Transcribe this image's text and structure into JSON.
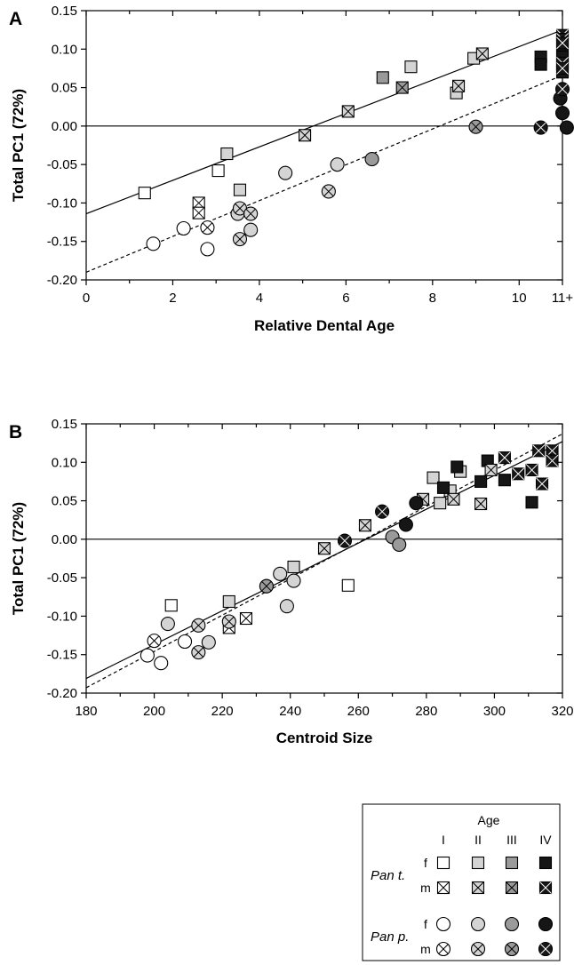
{
  "colors": {
    "I": "#ffffff",
    "II": "#d4d4d4",
    "III": "#9a9a9a",
    "IV": "#161616"
  },
  "chart_data": [
    {
      "type": "scatter",
      "panel": "A",
      "xlabel": "Relative Dental Age",
      "ylabel": "Total PC1 (72%)",
      "xlim": [
        0,
        11
      ],
      "ylim": [
        -0.2,
        0.15
      ],
      "xticks": [
        0,
        2,
        4,
        6,
        8,
        10,
        11
      ],
      "xtick_labels": [
        "0",
        "2",
        "4",
        "6",
        "8",
        "10",
        "11+"
      ],
      "yticks": [
        -0.2,
        -0.15,
        -0.1,
        -0.05,
        0.0,
        0.05,
        0.1,
        0.15
      ],
      "ytick_labels": [
        "-0.20",
        "-0.15",
        "-0.10",
        "-0.05",
        "0.00",
        "0.05",
        "0.10",
        "0.15"
      ],
      "reference_line_y": 0,
      "fit_lines": [
        {
          "style": "solid",
          "x": [
            0,
            11
          ],
          "y": [
            -0.114,
            0.125
          ]
        },
        {
          "style": "dashed",
          "x": [
            0,
            11
          ],
          "y": [
            -0.19,
            0.066
          ]
        }
      ],
      "series": [
        {
          "species": "Pan t.",
          "sex": "f",
          "age": "I",
          "points": [
            [
              1.35,
              -0.087
            ],
            [
              3.05,
              -0.058
            ]
          ]
        },
        {
          "species": "Pan t.",
          "sex": "f",
          "age": "II",
          "points": [
            [
              3.25,
              -0.036
            ],
            [
              3.55,
              -0.083
            ],
            [
              7.5,
              0.077
            ],
            [
              8.55,
              0.043
            ],
            [
              8.95,
              0.088
            ]
          ]
        },
        {
          "species": "Pan t.",
          "sex": "f",
          "age": "III",
          "points": [
            [
              6.85,
              0.063
            ]
          ]
        },
        {
          "species": "Pan t.",
          "sex": "f",
          "age": "IV",
          "points": [
            [
              10.5,
              0.09
            ],
            [
              10.5,
              0.08
            ],
            [
              11,
              0.1
            ],
            [
              11,
              0.09
            ],
            [
              11,
              0.07
            ],
            [
              11,
              0.08
            ]
          ]
        },
        {
          "species": "Pan t.",
          "sex": "m",
          "age": "I",
          "points": [
            [
              2.6,
              -0.1
            ],
            [
              2.6,
              -0.113
            ]
          ]
        },
        {
          "species": "Pan t.",
          "sex": "m",
          "age": "II",
          "points": [
            [
              5.05,
              -0.012
            ],
            [
              6.05,
              0.019
            ],
            [
              8.6,
              0.052
            ],
            [
              9.15,
              0.094
            ]
          ]
        },
        {
          "species": "Pan t.",
          "sex": "m",
          "age": "III",
          "points": [
            [
              7.3,
              0.05
            ]
          ]
        },
        {
          "species": "Pan t.",
          "sex": "m",
          "age": "IV",
          "points": [
            [
              11,
              0.118
            ],
            [
              11,
              0.113
            ],
            [
              11,
              0.108
            ],
            [
              11,
              0.082
            ],
            [
              11,
              0.075
            ]
          ]
        },
        {
          "species": "Pan p.",
          "sex": "f",
          "age": "I",
          "points": [
            [
              1.55,
              -0.153
            ],
            [
              2.25,
              -0.133
            ],
            [
              2.8,
              -0.16
            ]
          ]
        },
        {
          "species": "Pan p.",
          "sex": "f",
          "age": "II",
          "points": [
            [
              3.5,
              -0.114
            ],
            [
              3.8,
              -0.135
            ],
            [
              4.6,
              -0.061
            ],
            [
              5.8,
              -0.05
            ]
          ]
        },
        {
          "species": "Pan p.",
          "sex": "f",
          "age": "III",
          "points": [
            [
              6.6,
              -0.043
            ]
          ]
        },
        {
          "species": "Pan p.",
          "sex": "f",
          "age": "IV",
          "points": [
            [
              10.95,
              0.036
            ],
            [
              11,
              0.017
            ],
            [
              11.1,
              -0.002
            ]
          ]
        },
        {
          "species": "Pan p.",
          "sex": "m",
          "age": "I",
          "points": [
            [
              2.8,
              -0.132
            ]
          ]
        },
        {
          "species": "Pan p.",
          "sex": "m",
          "age": "II",
          "points": [
            [
              3.55,
              -0.107
            ],
            [
              3.55,
              -0.147
            ],
            [
              3.8,
              -0.114
            ],
            [
              5.6,
              -0.085
            ]
          ]
        },
        {
          "species": "Pan p.",
          "sex": "m",
          "age": "III",
          "points": [
            [
              9.0,
              -0.001
            ]
          ]
        },
        {
          "species": "Pan p.",
          "sex": "m",
          "age": "IV",
          "points": [
            [
              10.5,
              -0.002
            ],
            [
              11,
              0.048
            ]
          ]
        }
      ]
    },
    {
      "type": "scatter",
      "panel": "B",
      "xlabel": "Centroid Size",
      "ylabel": "Total PC1 (72%)",
      "xlim": [
        180,
        320
      ],
      "ylim": [
        -0.2,
        0.15
      ],
      "xticks": [
        180,
        200,
        220,
        240,
        260,
        280,
        300,
        320
      ],
      "xtick_labels": [
        "180",
        "200",
        "220",
        "240",
        "260",
        "280",
        "300",
        "320"
      ],
      "yticks": [
        -0.2,
        -0.15,
        -0.1,
        -0.05,
        0.0,
        0.05,
        0.1,
        0.15
      ],
      "ytick_labels": [
        "-0.20",
        "-0.15",
        "-0.10",
        "-0.05",
        "0.00",
        "0.05",
        "0.10",
        "0.15"
      ],
      "reference_line_y": 0,
      "fit_lines": [
        {
          "style": "solid",
          "x": [
            180,
            320
          ],
          "y": [
            -0.181,
            0.127
          ]
        },
        {
          "style": "dashed",
          "x": [
            180,
            320
          ],
          "y": [
            -0.193,
            0.137
          ]
        }
      ],
      "series": [
        {
          "species": "Pan t.",
          "sex": "f",
          "age": "I",
          "points": [
            [
              205,
              -0.086
            ],
            [
              257,
              -0.06
            ]
          ]
        },
        {
          "species": "Pan t.",
          "sex": "f",
          "age": "II",
          "points": [
            [
              222,
              -0.081
            ],
            [
              241,
              -0.036
            ],
            [
              282,
              0.08
            ],
            [
              284,
              0.047
            ],
            [
              287,
              0.063
            ],
            [
              290,
              0.088
            ]
          ]
        },
        {
          "species": "Pan t.",
          "sex": "f",
          "age": "III",
          "points": [
            [],
            []
          ]
        },
        {
          "species": "Pan t.",
          "sex": "f",
          "age": "IV",
          "points": [
            [
              285,
              0.067
            ],
            [
              289,
              0.094
            ],
            [
              296,
              0.075
            ],
            [
              298,
              0.102
            ],
            [
              303,
              0.077
            ],
            [
              311,
              0.048
            ]
          ]
        },
        {
          "species": "Pan t.",
          "sex": "m",
          "age": "I",
          "points": [
            [
              222,
              -0.115
            ],
            [
              227,
              -0.103
            ]
          ]
        },
        {
          "species": "Pan t.",
          "sex": "m",
          "age": "II",
          "points": [
            [
              250,
              -0.012
            ],
            [
              262,
              0.018
            ],
            [
              279,
              0.052
            ],
            [
              288,
              0.052
            ],
            [
              296,
              0.046
            ],
            [
              299,
              0.09
            ]
          ]
        },
        {
          "species": "Pan t.",
          "sex": "m",
          "age": "IV",
          "points": [
            [
              303,
              0.106
            ],
            [
              307,
              0.085
            ],
            [
              311,
              0.09
            ],
            [
              313,
              0.115
            ],
            [
              314,
              0.072
            ],
            [
              317,
              0.115
            ],
            [
              317,
              0.102
            ]
          ]
        },
        {
          "species": "Pan p.",
          "sex": "f",
          "age": "I",
          "points": [
            [
              198,
              -0.151
            ],
            [
              202,
              -0.161
            ],
            [
              209,
              -0.133
            ]
          ]
        },
        {
          "species": "Pan p.",
          "sex": "f",
          "age": "II",
          "points": [
            [
              204,
              -0.11
            ],
            [
              216,
              -0.134
            ],
            [
              233,
              -0.061
            ],
            [
              237,
              -0.045
            ],
            [
              239,
              -0.087
            ],
            [
              241,
              -0.054
            ]
          ]
        },
        {
          "species": "Pan p.",
          "sex": "f",
          "age": "III",
          "points": [
            [
              270,
              0.003
            ],
            [
              272,
              -0.007
            ]
          ]
        },
        {
          "species": "Pan p.",
          "sex": "f",
          "age": "IV",
          "points": [
            [
              274,
              0.019
            ],
            [
              277,
              0.047
            ]
          ]
        },
        {
          "species": "Pan p.",
          "sex": "m",
          "age": "I",
          "points": [
            [
              200,
              -0.132
            ]
          ]
        },
        {
          "species": "Pan p.",
          "sex": "m",
          "age": "II",
          "points": [
            [
              213,
              -0.112
            ],
            [
              213,
              -0.147
            ],
            [
              222,
              -0.107
            ]
          ]
        },
        {
          "species": "Pan p.",
          "sex": "m",
          "age": "III",
          "points": [
            [
              233,
              -0.061
            ]
          ]
        },
        {
          "species": "Pan p.",
          "sex": "m",
          "age": "IV",
          "points": [
            [
              256,
              -0.002
            ],
            [
              267,
              0.036
            ]
          ]
        }
      ]
    }
  ],
  "legend": {
    "title": "Age",
    "age_classes": [
      "I",
      "II",
      "III",
      "IV"
    ],
    "groups": [
      {
        "species": "Pan t.",
        "rows": [
          {
            "sex": "f",
            "marker": "square"
          },
          {
            "sex": "m",
            "marker": "square-x"
          }
        ]
      },
      {
        "species": "Pan p.",
        "rows": [
          {
            "sex": "f",
            "marker": "circle"
          },
          {
            "sex": "m",
            "marker": "circle-x"
          }
        ]
      }
    ]
  }
}
